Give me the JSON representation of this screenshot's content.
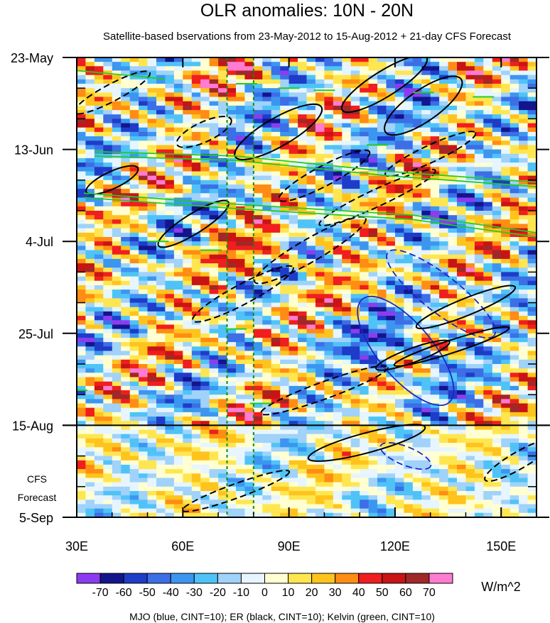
{
  "chart_data": {
    "type": "heatmap",
    "title": "OLR anomalies: 10N - 20N",
    "subtitle": "Satellite-based bservations from 23-May-2012 to 15-Aug-2012 + 21-day CFS Forecast",
    "x_axis": {
      "range": [
        30,
        160
      ],
      "ticks": [
        30,
        60,
        90,
        120,
        150
      ],
      "tick_labels": [
        "30E",
        "60E",
        "90E",
        "120E",
        "150E"
      ]
    },
    "y_axis": {
      "range_days": [
        0,
        105
      ],
      "ticks": [
        0,
        21,
        42,
        63,
        84,
        105
      ],
      "tick_labels": [
        "23-May",
        "13-Jun",
        "4-Jul",
        "25-Jul",
        "15-Aug",
        "5-Sep"
      ]
    },
    "forecast_label_lines": [
      "CFS",
      "Forecast"
    ],
    "forecast_start_day": 84,
    "reference_lines_lon": [
      72.5,
      80
    ],
    "colorbar": {
      "levels": [
        -70,
        -60,
        -50,
        -40,
        -30,
        -20,
        -10,
        0,
        10,
        20,
        30,
        40,
        50,
        60,
        70
      ],
      "label_values": [
        "-70",
        "-60",
        "-50",
        "-40",
        "-30",
        "-20",
        "-10",
        "0",
        "10",
        "20",
        "30",
        "40",
        "50",
        "60",
        "70"
      ],
      "colors": [
        "#8c3cf0",
        "#14148c",
        "#1e3cc8",
        "#3c6ee6",
        "#3c96f0",
        "#4fc3f7",
        "#a0d2fa",
        "#e6f5ff",
        "#ffffd2",
        "#ffe650",
        "#ffc31e",
        "#ff8c14",
        "#f01e1e",
        "#c81414",
        "#a02828",
        "#ff7cd2"
      ],
      "units": "W/m^2"
    },
    "contour_legend": "MJO (blue, CINT=10); ER (black, CINT=10); Kelvin (green, CINT=10)",
    "line_colors": {
      "mjo": "#1f24c8",
      "er": "#000000",
      "kelvin": "#22cc22",
      "reference": "#138a13"
    }
  }
}
